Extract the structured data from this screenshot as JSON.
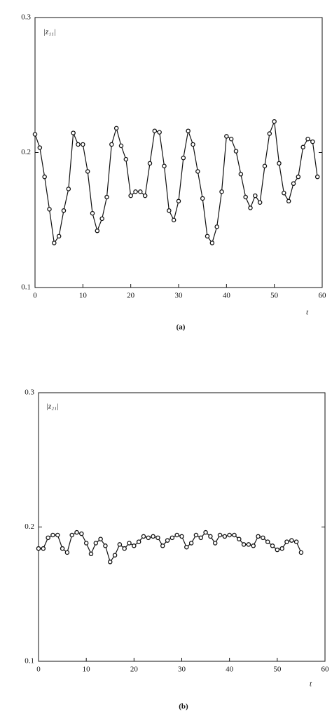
{
  "chart_data": [
    {
      "type": "line",
      "y_label": "|z₁₁|",
      "x_label": "t",
      "caption": "(a)",
      "xlim": [
        0,
        60
      ],
      "xticks": [
        0,
        10,
        20,
        30,
        40,
        50,
        60
      ],
      "ylim": [
        0.1,
        0.3
      ],
      "yticks": [
        0.1,
        0.2,
        0.3
      ],
      "color": "#111111",
      "x": [
        0,
        1,
        2,
        3,
        4,
        5,
        6,
        7,
        8,
        9,
        10,
        11,
        12,
        13,
        14,
        15,
        16,
        17,
        18,
        19,
        20,
        21,
        22,
        23,
        24,
        25,
        26,
        27,
        28,
        29,
        30,
        31,
        32,
        33,
        34,
        35,
        36,
        37,
        38,
        39,
        40,
        41,
        42,
        43,
        44,
        45,
        46,
        47,
        48,
        49,
        50,
        51,
        52,
        53,
        54,
        55,
        56,
        57,
        58,
        59
      ],
      "values": [
        0.2135,
        0.2036,
        0.182,
        0.158,
        0.133,
        0.138,
        0.157,
        0.173,
        0.2145,
        0.206,
        0.206,
        0.186,
        0.155,
        0.142,
        0.151,
        0.167,
        0.206,
        0.218,
        0.205,
        0.195,
        0.168,
        0.171,
        0.171,
        0.168,
        0.192,
        0.216,
        0.215,
        0.19,
        0.157,
        0.15,
        0.164,
        0.196,
        0.216,
        0.206,
        0.186,
        0.166,
        0.138,
        0.133,
        0.145,
        0.171,
        0.212,
        0.21,
        0.201,
        0.184,
        0.167,
        0.159,
        0.168,
        0.163,
        0.19,
        0.214,
        0.223,
        0.192,
        0.17,
        0.164,
        0.177,
        0.182,
        0.204,
        0.21,
        0.208,
        0.182
      ]
    },
    {
      "type": "line",
      "y_label": "|z₂₁|",
      "x_label": "t",
      "caption": "(b)",
      "xlim": [
        0,
        60
      ],
      "xticks": [
        0,
        10,
        20,
        30,
        40,
        50,
        60
      ],
      "ylim": [
        0.1,
        0.3
      ],
      "yticks": [
        0.1,
        0.2,
        0.3
      ],
      "color": "#111111",
      "x": [
        0,
        1,
        2,
        3,
        4,
        5,
        6,
        7,
        8,
        9,
        10,
        11,
        12,
        13,
        14,
        15,
        16,
        17,
        18,
        19,
        20,
        21,
        22,
        23,
        24,
        25,
        26,
        27,
        28,
        29,
        30,
        31,
        32,
        33,
        34,
        35,
        36,
        37,
        38,
        39,
        40,
        41,
        42,
        43,
        44,
        45,
        46,
        47,
        48,
        49,
        50,
        51,
        52,
        53,
        54,
        55
      ],
      "values": [
        0.184,
        0.184,
        0.192,
        0.194,
        0.194,
        0.184,
        0.181,
        0.194,
        0.196,
        0.195,
        0.188,
        0.18,
        0.188,
        0.191,
        0.186,
        0.174,
        0.179,
        0.187,
        0.184,
        0.188,
        0.186,
        0.189,
        0.193,
        0.192,
        0.193,
        0.192,
        0.186,
        0.19,
        0.192,
        0.194,
        0.193,
        0.185,
        0.188,
        0.194,
        0.192,
        0.196,
        0.193,
        0.188,
        0.194,
        0.193,
        0.194,
        0.194,
        0.191,
        0.187,
        0.187,
        0.186,
        0.193,
        0.192,
        0.189,
        0.186,
        0.183,
        0.184,
        0.189,
        0.19,
        0.189,
        0.181
      ]
    }
  ]
}
